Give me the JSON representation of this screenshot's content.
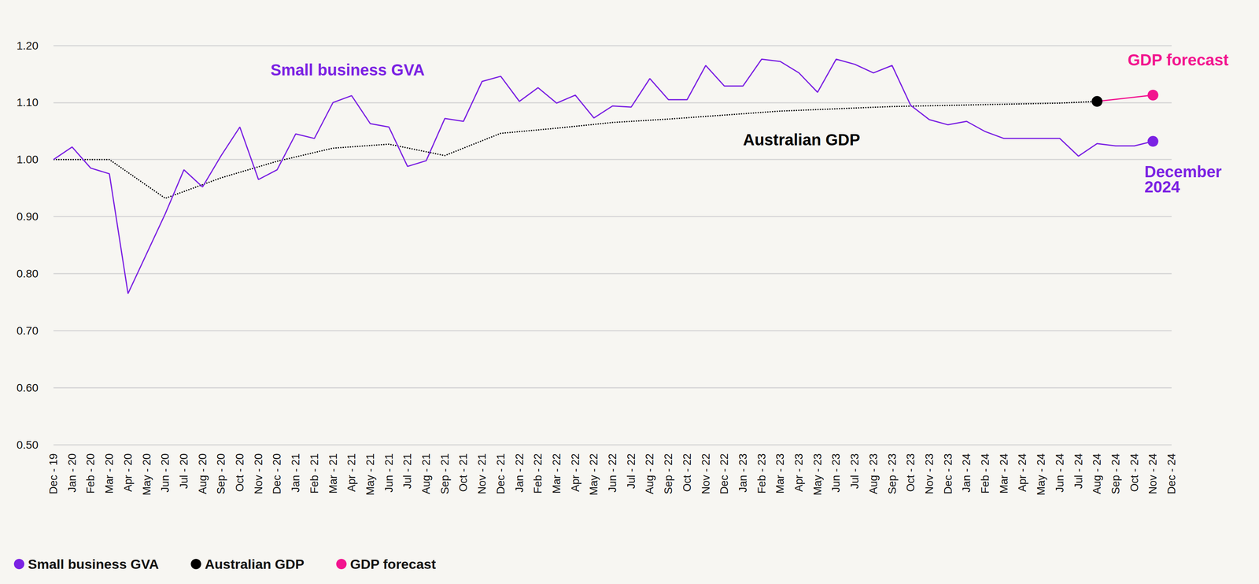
{
  "chart_data": {
    "type": "line",
    "categories": [
      "Dec - 19",
      "Jan - 20",
      "Feb - 20",
      "Mar - 20",
      "Apr - 20",
      "May - 20",
      "Jun - 20",
      "Jul - 20",
      "Aug - 20",
      "Sep - 20",
      "Oct - 20",
      "Nov - 20",
      "Dec - 20",
      "Jan - 21",
      "Feb - 21",
      "Mar - 21",
      "Apr - 21",
      "May - 21",
      "Jun - 21",
      "Jul - 21",
      "Aug - 21",
      "Sep - 21",
      "Oct - 21",
      "Nov - 21",
      "Dec - 21",
      "Jan - 22",
      "Feb - 22",
      "Mar - 22",
      "Apr - 22",
      "May - 22",
      "Jun - 22",
      "Jul - 22",
      "Aug - 22",
      "Sep - 22",
      "Oct - 22",
      "Nov - 22",
      "Dec - 22",
      "Jan - 23",
      "Feb - 23",
      "Mar - 23",
      "Apr - 23",
      "May - 23",
      "Jun - 23",
      "Jul - 23",
      "Aug - 23",
      "Sep - 23",
      "Oct - 23",
      "Nov - 23",
      "Dec - 23",
      "Jan - 24",
      "Feb - 24",
      "Mar - 24",
      "Apr - 24",
      "May - 24",
      "Jun - 24",
      "Jul - 24",
      "Aug - 24",
      "Sep - 24",
      "Oct - 24",
      "Nov - 24",
      "Dec - 24"
    ],
    "series": [
      {
        "name": "Small business GVA",
        "color": "#7b22e3",
        "line_style": "solid",
        "marker": "end",
        "values": [
          1.0,
          1.022,
          0.985,
          0.975,
          0.765,
          0.835,
          0.905,
          0.982,
          0.952,
          1.007,
          1.057,
          0.965,
          0.982,
          1.045,
          1.037,
          1.1,
          1.112,
          1.063,
          1.057,
          0.988,
          0.998,
          1.072,
          1.067,
          1.137,
          1.146,
          1.102,
          1.126,
          1.099,
          1.113,
          1.073,
          1.094,
          1.092,
          1.142,
          1.105,
          1.105,
          1.165,
          1.129,
          1.129,
          1.176,
          1.172,
          1.152,
          1.118,
          1.176,
          1.167,
          1.152,
          1.165,
          1.095,
          1.07,
          1.061,
          1.067,
          1.049,
          1.037,
          1.037,
          1.037,
          1.037,
          1.006,
          1.028,
          1.024,
          1.024,
          1.032,
          null
        ]
      },
      {
        "name": "Australian GDP",
        "color": "#000000",
        "line_style": "dotted",
        "marker": "end",
        "values": [
          1.0,
          null,
          null,
          1.0,
          null,
          null,
          0.932,
          null,
          null,
          0.968,
          null,
          null,
          0.997,
          null,
          null,
          1.02,
          null,
          null,
          1.027,
          null,
          null,
          1.007,
          null,
          null,
          1.046,
          null,
          null,
          1.055,
          null,
          null,
          1.065,
          null,
          null,
          1.071,
          null,
          null,
          1.078,
          null,
          null,
          1.085,
          null,
          null,
          1.089,
          null,
          null,
          1.093,
          null,
          null,
          1.095,
          null,
          null,
          1.097,
          null,
          null,
          1.099,
          null,
          1.102,
          null,
          null,
          null,
          null
        ]
      },
      {
        "name": "GDP forecast",
        "color": "#f2148f",
        "line_style": "solid",
        "marker": "end",
        "values": [
          null,
          null,
          null,
          null,
          null,
          null,
          null,
          null,
          null,
          null,
          null,
          null,
          null,
          null,
          null,
          null,
          null,
          null,
          null,
          null,
          null,
          null,
          null,
          null,
          null,
          null,
          null,
          null,
          null,
          null,
          null,
          null,
          null,
          null,
          null,
          null,
          null,
          null,
          null,
          null,
          null,
          null,
          null,
          null,
          null,
          null,
          null,
          null,
          null,
          null,
          null,
          null,
          null,
          null,
          null,
          null,
          1.102,
          null,
          null,
          1.113,
          null
        ]
      }
    ],
    "ylim": [
      0.5,
      1.2
    ],
    "yticks": [
      {
        "value": 0.5,
        "label": "0.50"
      },
      {
        "value": 0.6,
        "label": "0.60"
      },
      {
        "value": 0.7,
        "label": "0.70"
      },
      {
        "value": 0.8,
        "label": "0.80"
      },
      {
        "value": 0.9,
        "label": "0.90"
      },
      {
        "value": 1.0,
        "label": "1.00"
      },
      {
        "value": 1.1,
        "label": "1.10"
      },
      {
        "value": 1.2,
        "label": "1.20"
      }
    ],
    "annotations": [
      {
        "text": "Small business GVA",
        "color": "#7b22e3"
      },
      {
        "text": "Australian GDP",
        "color": "#000000"
      },
      {
        "text": "GDP forecast",
        "color": "#f2148f"
      },
      {
        "text": "December 2024",
        "color": "#7b22e3"
      }
    ],
    "grid": true,
    "legend": "bottom-left"
  }
}
